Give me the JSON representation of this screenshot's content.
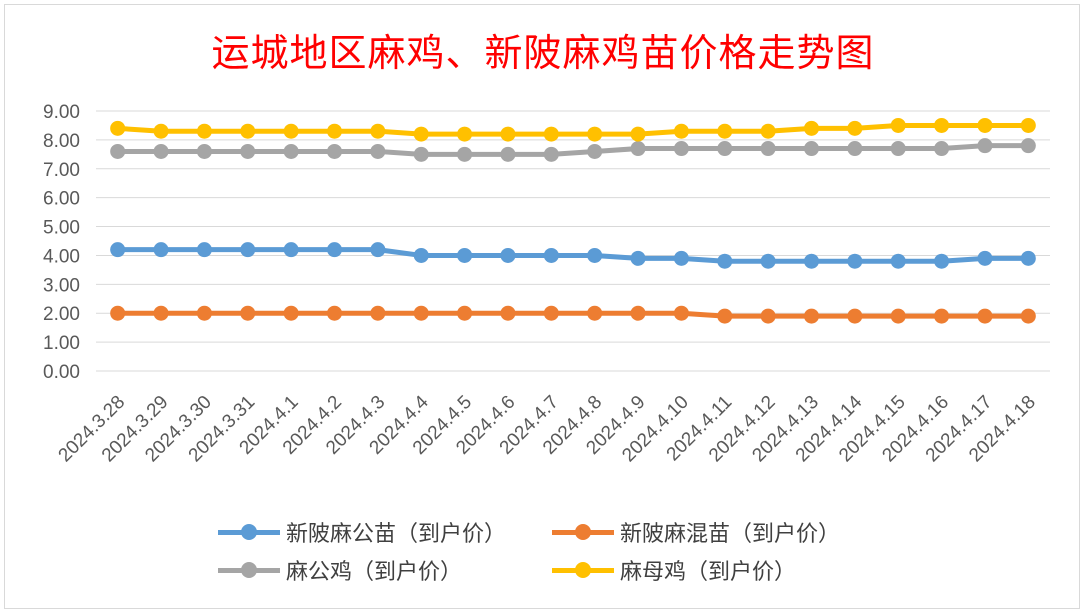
{
  "chart_data": {
    "type": "line",
    "title": "运城地区麻鸡、新陂麻鸡苗价格走势图",
    "categories": [
      "2024.3.28",
      "2024.3.29",
      "2024.3.30",
      "2024.3.31",
      "2024.4.1",
      "2024.4.2",
      "2024.4.3",
      "2024.4.4",
      "2024.4.5",
      "2024.4.6",
      "2024.4.7",
      "2024.4.8",
      "2024.4.9",
      "2024.4.10",
      "2024.4.11",
      "2024.4.12",
      "2024.4.13",
      "2024.4.14",
      "2024.4.15",
      "2024.4.16",
      "2024.4.17",
      "2024.4.18"
    ],
    "ylim": [
      0,
      9
    ],
    "yticks": [
      "0.00",
      "1.00",
      "2.00",
      "3.00",
      "4.00",
      "5.00",
      "6.00",
      "7.00",
      "8.00",
      "9.00"
    ],
    "grid": true,
    "legend_position": "bottom",
    "series": [
      {
        "name": "新陂麻公苗（到户价）",
        "color": "#5b9bd5",
        "values": [
          4.2,
          4.2,
          4.2,
          4.2,
          4.2,
          4.2,
          4.2,
          4.0,
          4.0,
          4.0,
          4.0,
          4.0,
          3.9,
          3.9,
          3.8,
          3.8,
          3.8,
          3.8,
          3.8,
          3.8,
          3.9,
          3.9
        ]
      },
      {
        "name": "新陂麻混苗（到户价）",
        "color": "#ed7d31",
        "values": [
          2.0,
          2.0,
          2.0,
          2.0,
          2.0,
          2.0,
          2.0,
          2.0,
          2.0,
          2.0,
          2.0,
          2.0,
          2.0,
          2.0,
          1.9,
          1.9,
          1.9,
          1.9,
          1.9,
          1.9,
          1.9,
          1.9
        ]
      },
      {
        "name": "麻公鸡（到户价）",
        "color": "#a5a5a5",
        "values": [
          7.6,
          7.6,
          7.6,
          7.6,
          7.6,
          7.6,
          7.6,
          7.5,
          7.5,
          7.5,
          7.5,
          7.6,
          7.7,
          7.7,
          7.7,
          7.7,
          7.7,
          7.7,
          7.7,
          7.7,
          7.8,
          7.8
        ]
      },
      {
        "name": "麻母鸡（到户价）",
        "color": "#ffc000",
        "values": [
          8.4,
          8.3,
          8.3,
          8.3,
          8.3,
          8.3,
          8.3,
          8.2,
          8.2,
          8.2,
          8.2,
          8.2,
          8.2,
          8.3,
          8.3,
          8.3,
          8.4,
          8.4,
          8.5,
          8.5,
          8.5,
          8.5
        ]
      }
    ]
  }
}
